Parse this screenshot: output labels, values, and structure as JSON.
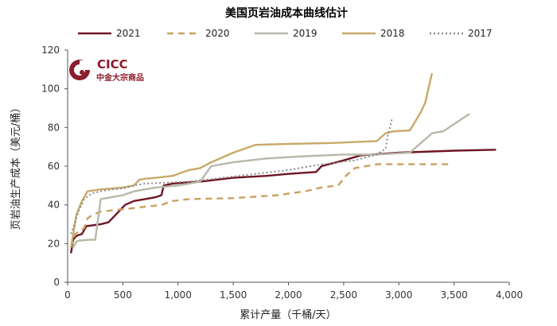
{
  "chart_data": {
    "type": "line",
    "title": "美国页岩油成本曲线估计",
    "xlabel": "累计产量（千桶/天）",
    "ylabel": "页岩油生产成本（美元/桶）",
    "xlim": [
      0,
      4000
    ],
    "ylim": [
      0,
      120
    ],
    "x_ticks": [
      0,
      500,
      1000,
      1500,
      2000,
      2500,
      3000,
      3500,
      4000
    ],
    "x_tick_labels": [
      "0",
      "500",
      "1,000",
      "1,500",
      "2,000",
      "2,500",
      "3,000",
      "3,500",
      "4,000"
    ],
    "y_ticks": [
      0,
      20,
      40,
      60,
      80,
      100,
      120
    ],
    "y_tick_labels": [
      "0",
      "20",
      "40",
      "60",
      "80",
      "100",
      "120"
    ],
    "grid": false,
    "legend_position": "top",
    "series": [
      {
        "name": "2021",
        "color": "#6e1423",
        "dash": "solid",
        "points": [
          [
            30,
            15
          ],
          [
            50,
            22
          ],
          [
            80,
            24
          ],
          [
            130,
            25
          ],
          [
            170,
            29
          ],
          [
            300,
            30
          ],
          [
            370,
            31
          ],
          [
            420,
            34
          ],
          [
            520,
            40
          ],
          [
            600,
            42
          ],
          [
            700,
            43
          ],
          [
            800,
            44
          ],
          [
            850,
            45
          ],
          [
            870,
            50
          ],
          [
            950,
            51
          ],
          [
            1050,
            51.5
          ],
          [
            1200,
            52
          ],
          [
            1500,
            54
          ],
          [
            1800,
            55
          ],
          [
            2000,
            56
          ],
          [
            2250,
            57
          ],
          [
            2300,
            60
          ],
          [
            2500,
            63
          ],
          [
            2650,
            65.5
          ],
          [
            2750,
            66
          ],
          [
            3000,
            67
          ],
          [
            3500,
            68
          ],
          [
            3880,
            68.5
          ]
        ]
      },
      {
        "name": "2020",
        "color": "#c8a060",
        "dash": "8,6",
        "points": [
          [
            30,
            18
          ],
          [
            70,
            25
          ],
          [
            150,
            28
          ],
          [
            180,
            33
          ],
          [
            230,
            35
          ],
          [
            300,
            36.5
          ],
          [
            450,
            37.5
          ],
          [
            550,
            38
          ],
          [
            700,
            39
          ],
          [
            850,
            40
          ],
          [
            950,
            42
          ],
          [
            1100,
            43
          ],
          [
            1500,
            43.5
          ],
          [
            1900,
            45
          ],
          [
            2150,
            47
          ],
          [
            2300,
            49
          ],
          [
            2450,
            50
          ],
          [
            2520,
            55
          ],
          [
            2600,
            59
          ],
          [
            2800,
            61
          ],
          [
            3200,
            61
          ],
          [
            3450,
            61
          ]
        ]
      },
      {
        "name": "2019",
        "color": "#b8b8a8",
        "dash": "solid",
        "points": [
          [
            50,
            18
          ],
          [
            80,
            21
          ],
          [
            100,
            21.5
          ],
          [
            200,
            22
          ],
          [
            250,
            22
          ],
          [
            300,
            43
          ],
          [
            400,
            44
          ],
          [
            500,
            45
          ],
          [
            600,
            47
          ],
          [
            700,
            48
          ],
          [
            800,
            49
          ],
          [
            1000,
            50
          ],
          [
            1200,
            52
          ],
          [
            1300,
            60
          ],
          [
            1500,
            62
          ],
          [
            1800,
            64
          ],
          [
            2100,
            65
          ],
          [
            2500,
            66
          ],
          [
            2800,
            66
          ],
          [
            3100,
            67
          ],
          [
            3200,
            72
          ],
          [
            3300,
            77
          ],
          [
            3400,
            78
          ],
          [
            3640,
            87
          ]
        ]
      },
      {
        "name": "2018",
        "color": "#c8a968",
        "dash": "solid",
        "points": [
          [
            30,
            18
          ],
          [
            80,
            35
          ],
          [
            130,
            42
          ],
          [
            180,
            47
          ],
          [
            300,
            48
          ],
          [
            500,
            49
          ],
          [
            600,
            50
          ],
          [
            650,
            53
          ],
          [
            700,
            53.5
          ],
          [
            800,
            54
          ],
          [
            950,
            55
          ],
          [
            1050,
            57
          ],
          [
            1100,
            58
          ],
          [
            1200,
            59
          ],
          [
            1300,
            62
          ],
          [
            1500,
            67
          ],
          [
            1700,
            71
          ],
          [
            2000,
            71.5
          ],
          [
            2400,
            72
          ],
          [
            2800,
            73
          ],
          [
            2880,
            77
          ],
          [
            2950,
            78
          ],
          [
            3100,
            78.5
          ],
          [
            3200,
            88
          ],
          [
            3240,
            93
          ],
          [
            3300,
            108
          ]
        ]
      },
      {
        "name": "2017",
        "color": "#8a8a8a",
        "dash": "2,3",
        "points": [
          [
            30,
            25
          ],
          [
            60,
            30
          ],
          [
            100,
            37
          ],
          [
            150,
            43
          ],
          [
            220,
            46
          ],
          [
            300,
            47
          ],
          [
            400,
            48
          ],
          [
            500,
            48.5
          ],
          [
            600,
            50
          ],
          [
            700,
            51
          ],
          [
            900,
            51.5
          ],
          [
            1100,
            52
          ],
          [
            1400,
            54
          ],
          [
            1700,
            56
          ],
          [
            2000,
            58
          ],
          [
            2300,
            61
          ],
          [
            2600,
            63
          ],
          [
            2800,
            66
          ],
          [
            2880,
            69
          ],
          [
            2900,
            76
          ],
          [
            2920,
            80
          ],
          [
            2940,
            85
          ]
        ]
      }
    ]
  },
  "logo": {
    "brand": "CICC",
    "subtitle": "中金大宗商品",
    "color": "#8b1d2c"
  }
}
